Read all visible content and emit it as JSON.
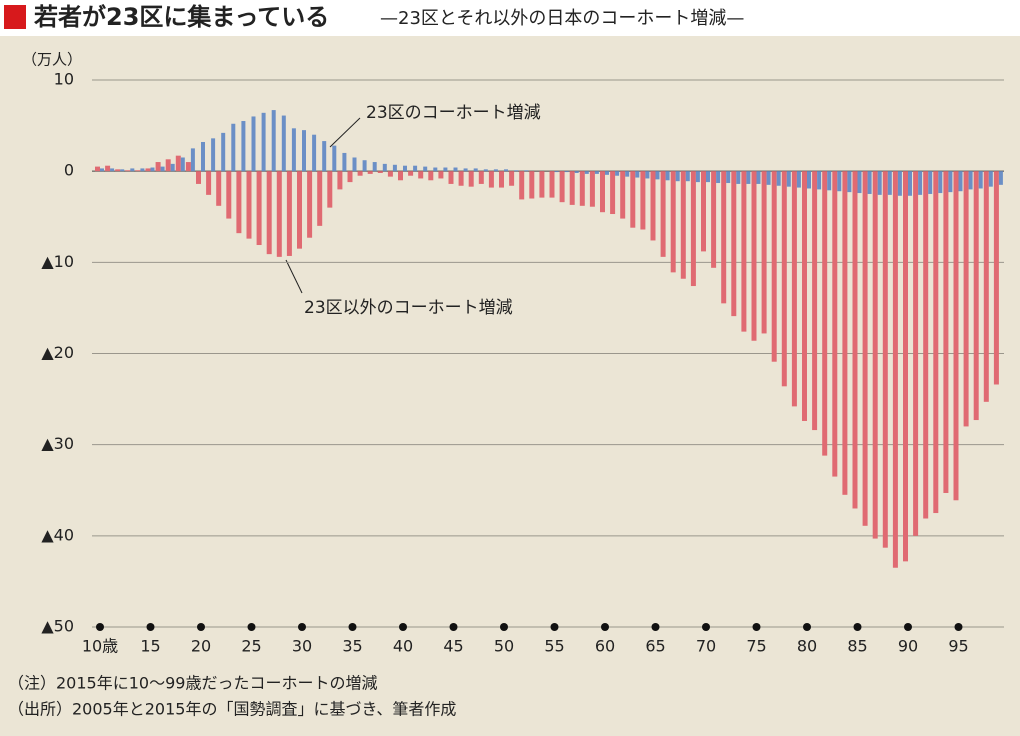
{
  "chart_data": {
    "type": "bar",
    "title": "若者が23区に集まっている",
    "subtitle": "—23区とそれ以外の日本のコーホート増減—",
    "y_unit": "（万人）",
    "categories": [
      "10歳",
      null,
      null,
      null,
      null,
      "15",
      null,
      null,
      null,
      null,
      "20",
      null,
      null,
      null,
      null,
      "25",
      null,
      null,
      null,
      null,
      "30",
      null,
      null,
      null,
      null,
      "35",
      null,
      null,
      null,
      null,
      "40",
      null,
      null,
      null,
      null,
      "45",
      null,
      null,
      null,
      null,
      "50",
      null,
      null,
      null,
      null,
      "55",
      null,
      null,
      null,
      null,
      "60",
      null,
      null,
      null,
      null,
      "65",
      null,
      null,
      null,
      null,
      "70",
      null,
      null,
      null,
      null,
      "75",
      null,
      null,
      null,
      null,
      "80",
      null,
      null,
      null,
      null,
      "85",
      null,
      null,
      null,
      null,
      "90",
      null,
      null,
      null,
      null,
      "95",
      null,
      null,
      null,
      null
    ],
    "series": [
      {
        "name": "23区以外のコーホート増減",
        "color": "#e06a72",
        "values": [
          0.5,
          0.6,
          0.2,
          0.1,
          0.1,
          0.3,
          1.0,
          1.3,
          1.7,
          1.0,
          -1.4,
          -2.6,
          -3.8,
          -5.2,
          -6.8,
          -7.4,
          -8.1,
          -9.1,
          -9.4,
          -9.3,
          -8.5,
          -7.3,
          -6.0,
          -4.0,
          -2.0,
          -1.2,
          -0.5,
          -0.3,
          -0.2,
          -0.6,
          -1.0,
          -0.5,
          -0.8,
          -1.0,
          -0.8,
          -1.4,
          -1.6,
          -1.7,
          -1.4,
          -1.8,
          -1.8,
          -1.6,
          -3.1,
          -3.0,
          -2.9,
          -2.9,
          -3.4,
          -3.7,
          -3.8,
          -3.9,
          -4.5,
          -4.7,
          -5.2,
          -6.2,
          -6.4,
          -7.6,
          -9.4,
          -11.1,
          -11.8,
          -12.6,
          -8.8,
          -10.6,
          -14.5,
          -15.9,
          -17.6,
          -18.6,
          -17.8,
          -20.9,
          -23.6,
          -25.8,
          -27.4,
          -28.4,
          -31.2,
          -33.5,
          -35.5,
          -37.0,
          -38.9,
          -40.3,
          -41.3,
          -43.5,
          -42.8,
          -40.0,
          -38.1,
          -37.5,
          -35.3,
          -36.1,
          -28.0,
          -27.3,
          -25.3,
          -23.4
        ]
      },
      {
        "name": "23区のコーホート増減",
        "color": "#6b8fc6",
        "values": [
          0.3,
          0.3,
          0.2,
          0.3,
          0.3,
          0.4,
          0.5,
          0.8,
          1.5,
          2.5,
          3.2,
          3.6,
          4.2,
          5.2,
          5.5,
          6.0,
          6.4,
          6.7,
          6.1,
          4.7,
          4.5,
          4.0,
          3.3,
          2.8,
          2.0,
          1.5,
          1.2,
          1.0,
          0.8,
          0.7,
          0.6,
          0.6,
          0.5,
          0.4,
          0.4,
          0.4,
          0.3,
          0.3,
          0.2,
          0.2,
          0.2,
          0.1,
          0.1,
          0,
          0,
          -0.1,
          -0.1,
          -0.2,
          -0.3,
          -0.3,
          -0.4,
          -0.5,
          -0.6,
          -0.7,
          -0.8,
          -0.9,
          -1.0,
          -1.1,
          -1.1,
          -1.2,
          -1.2,
          -1.3,
          -1.3,
          -1.4,
          -1.4,
          -1.4,
          -1.5,
          -1.6,
          -1.7,
          -1.8,
          -1.9,
          -2.0,
          -2.1,
          -2.2,
          -2.3,
          -2.4,
          -2.5,
          -2.6,
          -2.6,
          -2.7,
          -2.7,
          -2.6,
          -2.5,
          -2.4,
          -2.3,
          -2.2,
          -2.0,
          -1.9,
          -1.7,
          -1.5
        ]
      }
    ],
    "ylim": [
      -50,
      10
    ],
    "yticks": [
      10,
      0,
      {
        "value": -10,
        "label": "▲10"
      },
      {
        "value": -20,
        "label": "▲20"
      },
      {
        "value": -30,
        "label": "▲30"
      },
      {
        "value": -40,
        "label": "▲40"
      },
      {
        "value": -50,
        "label": "▲50"
      }
    ],
    "grid": true,
    "notes": [
      "（注）2015年に10～99歳だったコーホートの増減",
      "（出所）2005年と2015年の「国勢調査」に基づき、筆者作成"
    ]
  }
}
